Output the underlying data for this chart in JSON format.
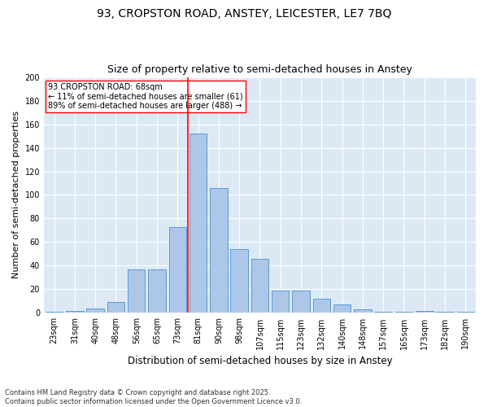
{
  "title1": "93, CROPSTON ROAD, ANSTEY, LEICESTER, LE7 7BQ",
  "title2": "Size of property relative to semi-detached houses in Anstey",
  "xlabel": "Distribution of semi-detached houses by size in Anstey",
  "ylabel": "Number of semi-detached properties",
  "categories": [
    "23sqm",
    "31sqm",
    "40sqm",
    "48sqm",
    "56sqm",
    "65sqm",
    "73sqm",
    "81sqm",
    "90sqm",
    "98sqm",
    "107sqm",
    "115sqm",
    "123sqm",
    "132sqm",
    "140sqm",
    "148sqm",
    "157sqm",
    "165sqm",
    "173sqm",
    "182sqm",
    "190sqm"
  ],
  "values": [
    1,
    2,
    4,
    9,
    37,
    37,
    73,
    152,
    106,
    54,
    46,
    19,
    19,
    12,
    7,
    3,
    1,
    1,
    2,
    1,
    1
  ],
  "bar_color": "#aec6e8",
  "bar_edge_color": "#5b9bd5",
  "vline_x_index": 6.5,
  "vline_color": "red",
  "annotation_text": "93 CROPSTON ROAD: 68sqm\n← 11% of semi-detached houses are smaller (61)\n89% of semi-detached houses are larger (488) →",
  "annotation_box_color": "white",
  "annotation_box_edge": "red",
  "ylim": [
    0,
    200
  ],
  "yticks": [
    0,
    20,
    40,
    60,
    80,
    100,
    120,
    140,
    160,
    180,
    200
  ],
  "bg_color": "#dce9f5",
  "footer": "Contains HM Land Registry data © Crown copyright and database right 2025.\nContains public sector information licensed under the Open Government Licence v3.0.",
  "title1_fontsize": 10,
  "title2_fontsize": 9,
  "ylabel_fontsize": 8,
  "xlabel_fontsize": 8.5,
  "tick_fontsize": 7,
  "annotation_fontsize": 7,
  "footer_fontsize": 6
}
